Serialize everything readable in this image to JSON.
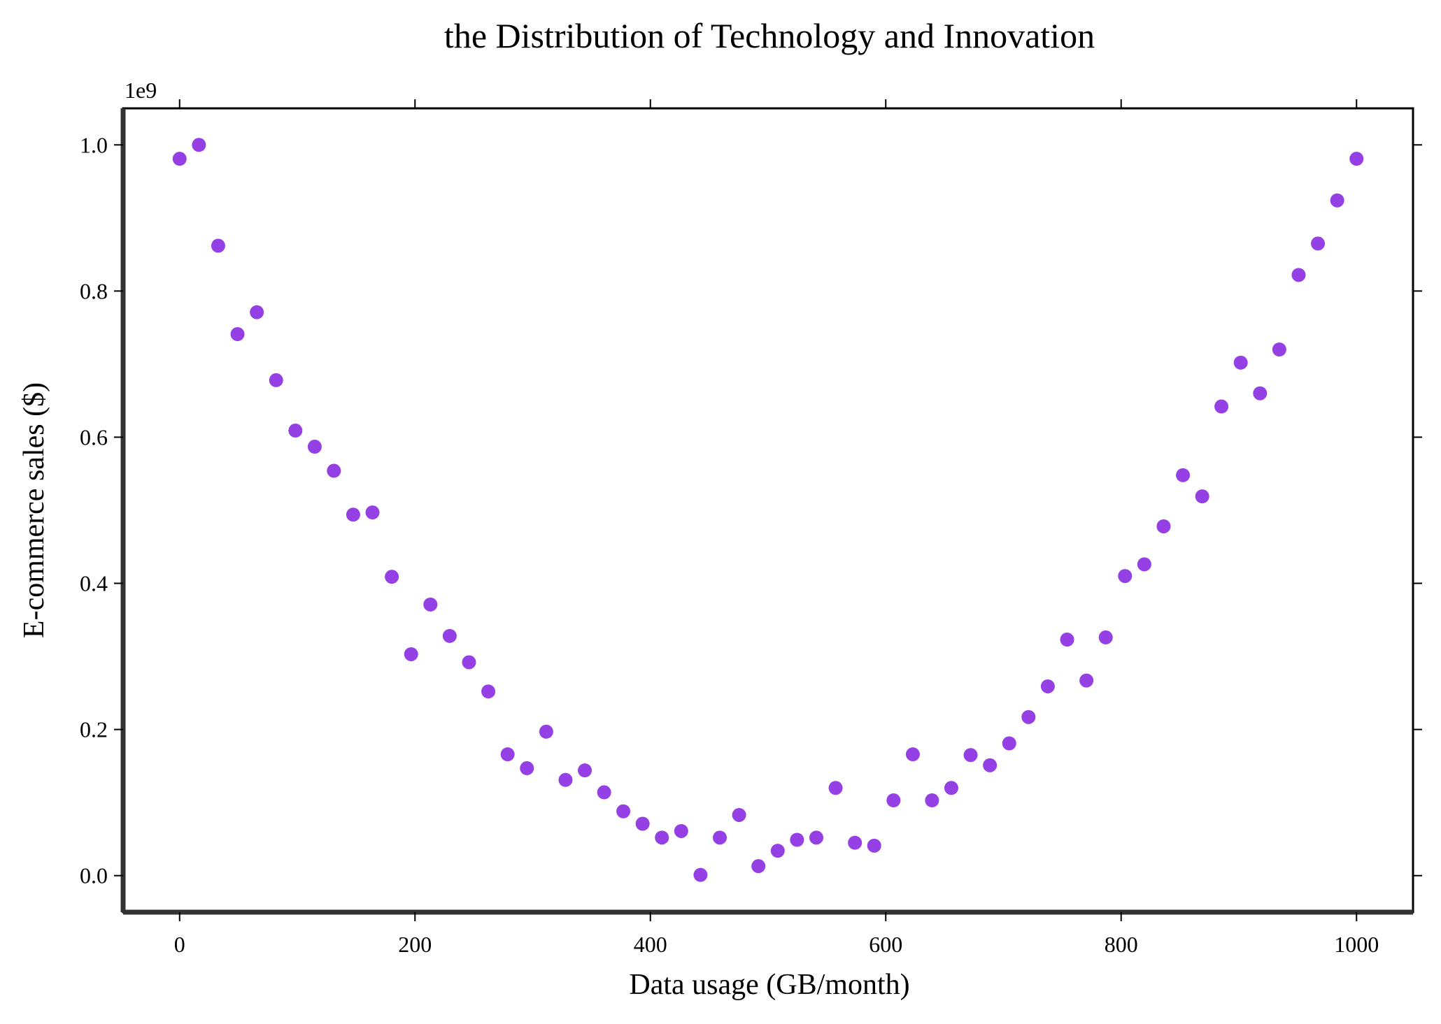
{
  "chart_data": {
    "type": "scatter",
    "title": "the Distribution of Technology and Innovation",
    "xlabel": "Data usage (GB/month)",
    "ylabel": "E-commerce sales ($)",
    "y_offset_label": "1e9",
    "xlim": [
      -48,
      1048
    ],
    "ylim": [
      -0.05,
      1.05
    ],
    "y_scale_factor": 1000000000,
    "x_ticks": [
      0,
      200,
      400,
      600,
      800,
      1000
    ],
    "x_tick_labels": [
      "0",
      "200",
      "400",
      "600",
      "800",
      "1000"
    ],
    "y_ticks": [
      0.0,
      0.2,
      0.4,
      0.6,
      0.8,
      1.0
    ],
    "y_tick_labels": [
      "0.0",
      "0.2",
      "0.4",
      "0.6",
      "0.8",
      "1.0"
    ],
    "grid": false,
    "marker_color": "#9440e5",
    "series": [
      {
        "x": [
          0,
          16.4,
          32.8,
          49.2,
          65.6,
          82.0,
          98.4,
          114.8,
          131.1,
          147.5,
          163.9,
          180.3,
          196.7,
          213.1,
          229.5,
          245.9,
          262.3,
          278.7,
          295.1,
          311.5,
          327.9,
          344.3,
          360.7,
          377.0,
          393.4,
          409.8,
          426.2,
          442.6,
          459.0,
          475.4,
          491.8,
          508.2,
          524.6,
          541.0,
          557.4,
          573.8,
          590.2,
          606.6,
          623.0,
          639.3,
          655.7,
          672.1,
          688.5,
          704.9,
          721.3,
          737.7,
          754.1,
          770.5,
          786.9,
          803.3,
          819.7,
          836.1,
          852.5,
          868.9,
          885.2,
          901.6,
          918.0,
          934.4,
          950.8,
          967.2,
          983.6,
          1000.0
        ],
        "y": [
          0.981,
          1.0,
          0.862,
          0.741,
          0.771,
          0.678,
          0.609,
          0.587,
          0.554,
          0.494,
          0.497,
          0.409,
          0.303,
          0.371,
          0.328,
          0.292,
          0.252,
          0.166,
          0.147,
          0.197,
          0.131,
          0.144,
          0.114,
          0.088,
          0.071,
          0.052,
          0.061,
          0.001,
          0.052,
          0.083,
          0.013,
          0.034,
          0.049,
          0.052,
          0.12,
          0.045,
          0.041,
          0.103,
          0.166,
          0.103,
          0.12,
          0.165,
          0.151,
          0.181,
          0.217,
          0.259,
          0.323,
          0.267,
          0.326,
          0.41,
          0.426,
          0.478,
          0.548,
          0.519,
          0.642,
          0.702,
          0.66,
          0.72,
          0.822,
          0.865,
          0.924,
          0.981
        ]
      }
    ]
  }
}
